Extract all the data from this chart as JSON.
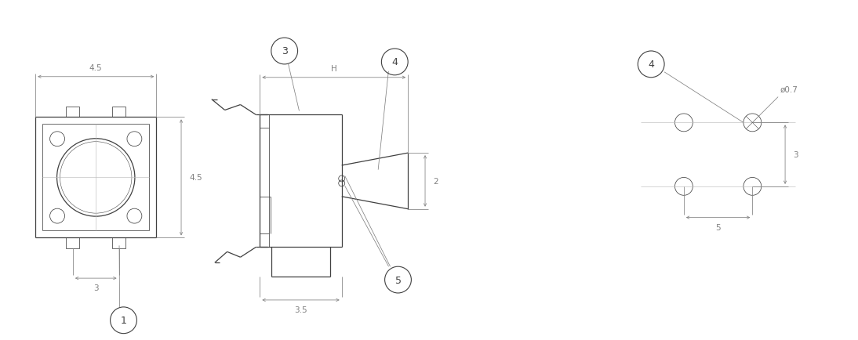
{
  "bg_color": "#ffffff",
  "line_color": "#404040",
  "dim_color": "#808080",
  "lw": 0.9,
  "lw_thin": 0.55,
  "lw_dim": 0.55,
  "font_size": 7.5,
  "label_font_size": 9,
  "fig_width": 10.94,
  "fig_height": 4.35,
  "annotations": {
    "label1": "1",
    "label3": "3",
    "label4": "4",
    "label5": "5",
    "dim_4_5_top": "4.5",
    "dim_4_5_side": "4.5",
    "dim_3": "3",
    "dim_H": "H",
    "dim_3_5": "3.5",
    "dim_2": "2",
    "dim_phi": "ø0.7",
    "dim_3_right": "3",
    "dim_5": "5"
  }
}
